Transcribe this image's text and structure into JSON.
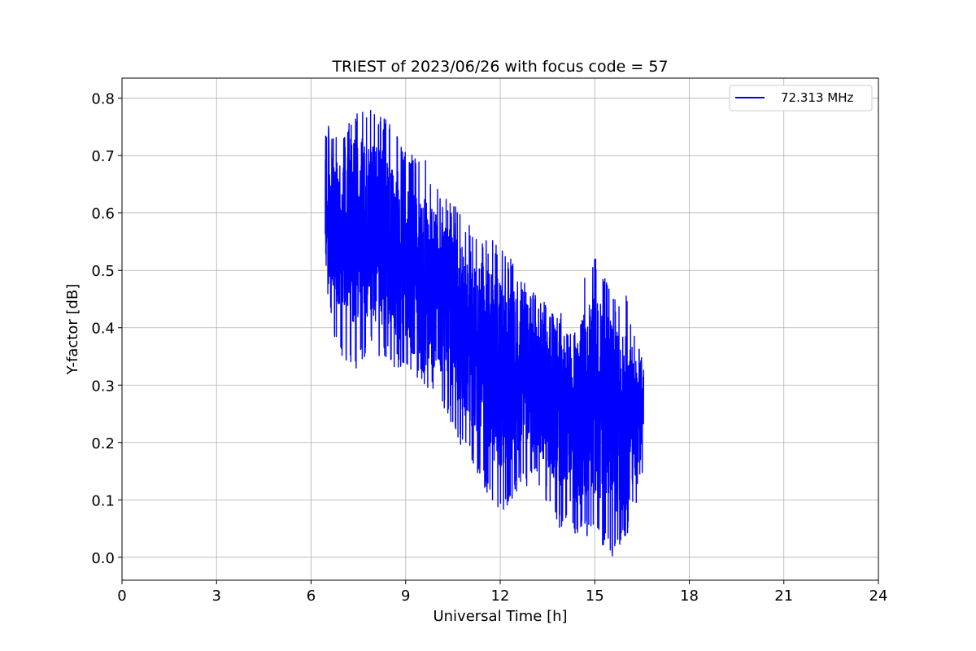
{
  "chart_data": {
    "type": "line",
    "title": "TRIEST of 2023/06/26 with focus code = 57",
    "xlabel": "Universal Time [h]",
    "ylabel": "Y-factor [dB]",
    "xlim": [
      0,
      24
    ],
    "ylim": [
      -0.04,
      0.835
    ],
    "xticks": [
      0,
      3,
      6,
      9,
      12,
      15,
      18,
      21,
      24
    ],
    "yticks": [
      0.0,
      0.1,
      0.2,
      0.3,
      0.4,
      0.5,
      0.6,
      0.7,
      0.8
    ],
    "ytick_labels": [
      "0.0",
      "0.1",
      "0.2",
      "0.3",
      "0.4",
      "0.5",
      "0.6",
      "0.7",
      "0.8"
    ],
    "grid": true,
    "legend_position": "top-right",
    "series": [
      {
        "name": "72.313 MHz",
        "color": "#0000ff",
        "x_start": 6.45,
        "x_end": 16.55,
        "envelope": {
          "x": [
            6.45,
            6.8,
            7.3,
            7.9,
            8.5,
            9.0,
            9.6,
            10.2,
            10.8,
            11.4,
            12.0,
            12.6,
            13.2,
            13.8,
            14.4,
            15.0,
            15.6,
            16.0,
            16.55
          ],
          "upper": [
            0.76,
            0.74,
            0.78,
            0.79,
            0.76,
            0.71,
            0.7,
            0.63,
            0.6,
            0.56,
            0.55,
            0.5,
            0.46,
            0.42,
            0.47,
            0.53,
            0.45,
            0.46,
            0.34
          ],
          "lower": [
            0.46,
            0.37,
            0.32,
            0.36,
            0.34,
            0.31,
            0.3,
            0.26,
            0.19,
            0.13,
            0.07,
            0.12,
            0.13,
            0.05,
            0.04,
            0.03,
            0.0,
            0.03,
            0.14
          ],
          "center": [
            0.6,
            0.57,
            0.57,
            0.57,
            0.55,
            0.51,
            0.48,
            0.45,
            0.4,
            0.36,
            0.32,
            0.32,
            0.3,
            0.26,
            0.24,
            0.28,
            0.24,
            0.23,
            0.26
          ]
        }
      }
    ]
  }
}
